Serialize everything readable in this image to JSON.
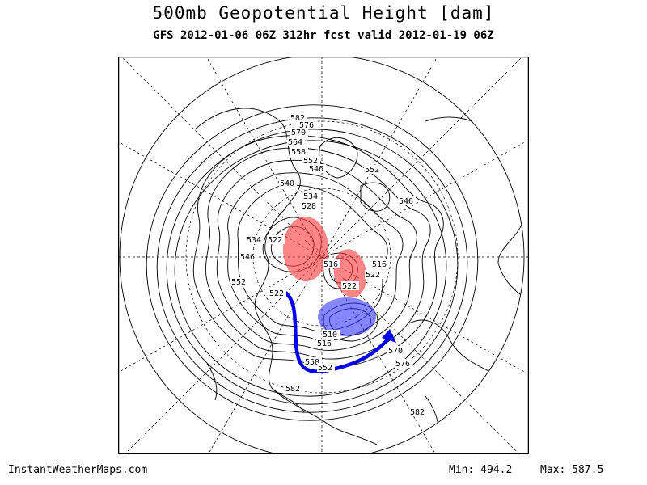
{
  "header": {
    "title": "500mb Geopotential Height [dam]",
    "subtitle": "GFS 2012-01-06 06Z 312hr fcst valid 2012-01-19 06Z"
  },
  "footer": {
    "site": "InstantWeatherMaps.com",
    "min_label": "Min:",
    "min_value": "494.2",
    "max_label": "Max:",
    "max_value": "587.5"
  },
  "map": {
    "projection": "north polar stereographic",
    "variable": "500mb geopotential height",
    "units": "dam",
    "contour_labels": [
      {
        "id": "c582a",
        "text": "582"
      },
      {
        "id": "c576a",
        "text": "576"
      },
      {
        "id": "c570a",
        "text": "570"
      },
      {
        "id": "c564a",
        "text": "564"
      },
      {
        "id": "c558a",
        "text": "558"
      },
      {
        "id": "c552a",
        "text": "552"
      },
      {
        "id": "c546a",
        "text": "546"
      },
      {
        "id": "c540a",
        "text": "540"
      },
      {
        "id": "c534a",
        "text": "534"
      },
      {
        "id": "c528a",
        "text": "528"
      },
      {
        "id": "c552b",
        "text": "552"
      },
      {
        "id": "c546b",
        "text": "546"
      },
      {
        "id": "c522a",
        "text": "522"
      },
      {
        "id": "c534b",
        "text": "534"
      },
      {
        "id": "c546c",
        "text": "546"
      },
      {
        "id": "c552c",
        "text": "552"
      },
      {
        "id": "c516a",
        "text": "516"
      },
      {
        "id": "c516b",
        "text": "516"
      },
      {
        "id": "c522b",
        "text": "522"
      },
      {
        "id": "c522c",
        "text": "522"
      },
      {
        "id": "c522d",
        "text": "522"
      },
      {
        "id": "c510a",
        "text": "510"
      },
      {
        "id": "c516c",
        "text": "516"
      },
      {
        "id": "c570b",
        "text": "570"
      },
      {
        "id": "c576b",
        "text": "576"
      },
      {
        "id": "c558b",
        "text": "558"
      },
      {
        "id": "c552d",
        "text": "552"
      },
      {
        "id": "c582b",
        "text": "582"
      },
      {
        "id": "c582c",
        "text": "582"
      }
    ],
    "annotations": {
      "ridge_color": "#ff3b3b",
      "trough_color": "#3b3bff",
      "arrow_color": "#0000ee"
    }
  }
}
